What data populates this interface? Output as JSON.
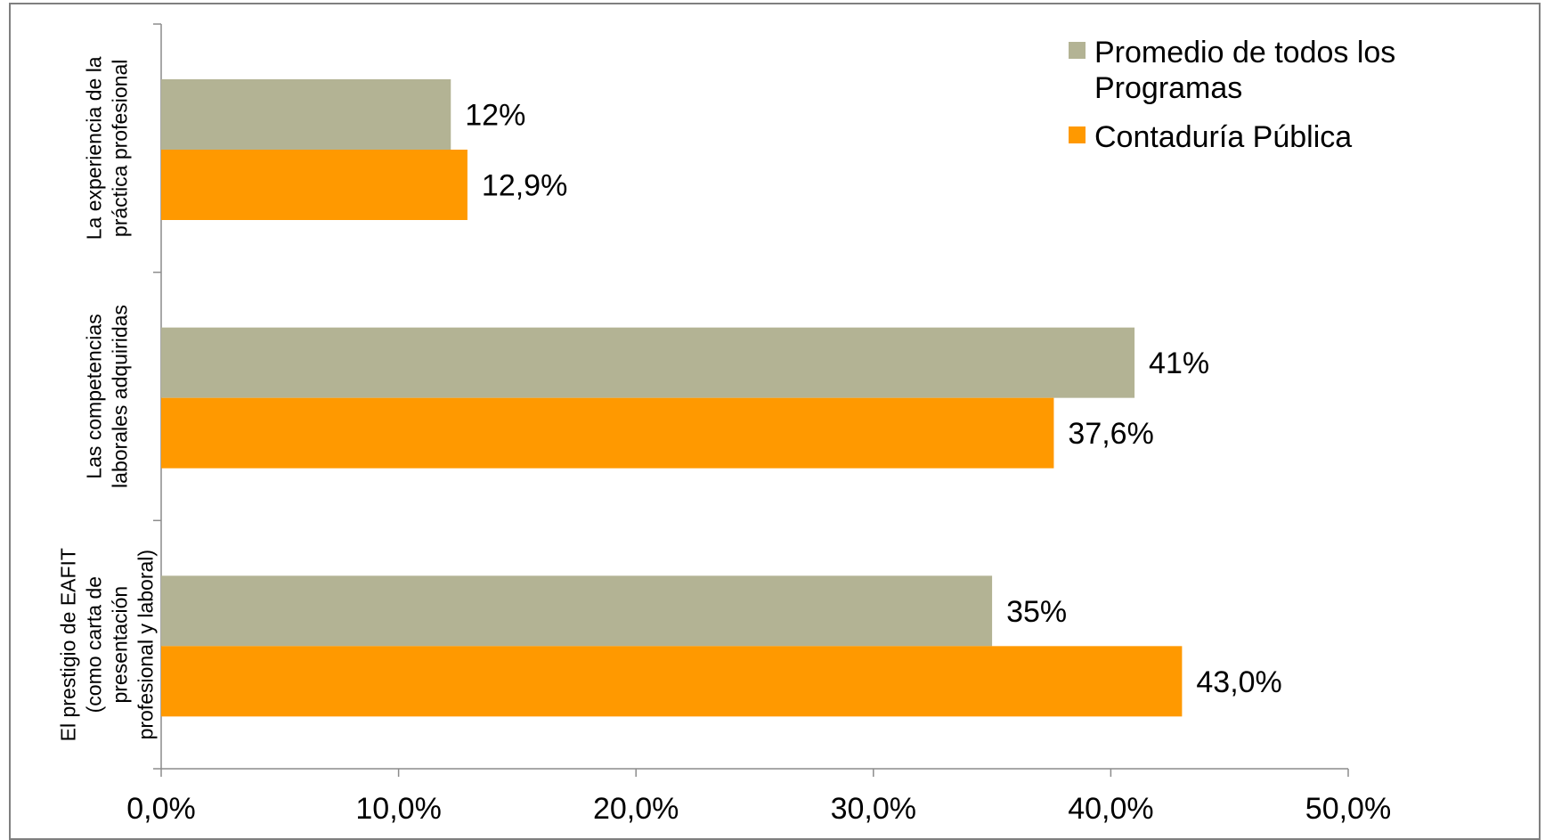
{
  "chart_data": {
    "type": "bar",
    "orientation": "horizontal",
    "categories": [
      [
        "La experiencia de la",
        "práctica profesional"
      ],
      [
        "Las competencias",
        "laborales adquiridas"
      ],
      [
        "El prestigio de EAFIT",
        "(como carta de",
        "presentación",
        "profesional y laboral)"
      ]
    ],
    "series": [
      {
        "name": "Promedio de todos los Programas",
        "name_lines": [
          "Promedio de todos los",
          "Programas"
        ],
        "color": "#b3b394",
        "values": [
          12.2,
          41.0,
          35.0
        ],
        "labels": [
          "12%",
          "41%",
          "35%"
        ]
      },
      {
        "name": "Contaduría Pública",
        "name_lines": [
          "Contaduría Pública"
        ],
        "color": "#ff9900",
        "values": [
          12.9,
          37.6,
          43.0
        ],
        "labels": [
          "12,9%",
          "37,6%",
          "43,0%"
        ]
      }
    ],
    "xlim": [
      0,
      50
    ],
    "xticks": [
      0,
      10,
      20,
      30,
      40,
      50
    ],
    "xtick_labels": [
      "0,0%",
      "10,0%",
      "20,0%",
      "30,0%",
      "40,0%",
      "50,0%"
    ],
    "title": "",
    "xlabel": "",
    "ylabel": "",
    "grid": false,
    "legend": "top-right"
  }
}
